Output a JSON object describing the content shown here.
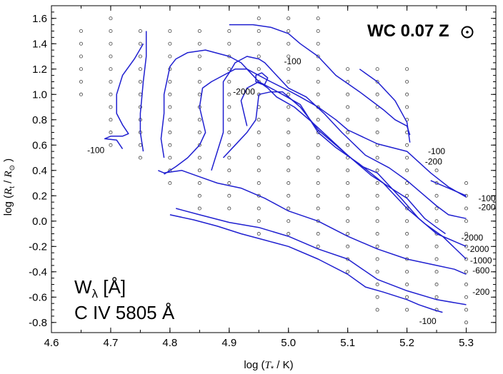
{
  "chart_data": {
    "type": "line",
    "title": "WC 0.07 Z",
    "title_symbol": "⊙",
    "xlabel_prefix": "log (",
    "xlabel_var": "T",
    "xlabel_sub": "*",
    "xlabel_suffix": " / K)",
    "ylabel_prefix": "log (",
    "ylabel_var1": "R",
    "ylabel_sub1": "t",
    "ylabel_mid": " / ",
    "ylabel_var2": "R",
    "ylabel_sub2": "⊙",
    "ylabel_suffix": " )",
    "annotation_line1": "W",
    "annotation_sub": "λ",
    "annotation_unit": " [Å]",
    "annotation_line2": "C IV 5805 Å",
    "xlim": [
      4.6,
      5.35
    ],
    "ylim": [
      -0.88,
      1.7
    ],
    "xticks": [
      4.6,
      4.7,
      4.8,
      4.9,
      5.0,
      5.1,
      5.2,
      5.3
    ],
    "yticks": [
      -0.8,
      -0.6,
      -0.4,
      -0.2,
      0.0,
      0.2,
      0.4,
      0.6,
      0.8,
      1.0,
      1.2,
      1.4,
      1.6
    ],
    "xtick_labels": [
      "4.6",
      "4.7",
      "4.8",
      "4.9",
      "5.0",
      "5.1",
      "5.2",
      "5.3"
    ],
    "ytick_labels": [
      "-0.8",
      "-0.6",
      "-0.4",
      "-0.2",
      "0.0",
      "0.2",
      "0.4",
      "0.6",
      "0.8",
      "1.0",
      "1.2",
      "1.4",
      "1.6"
    ],
    "grid": false,
    "line_color": "#1f1fd0",
    "grid_models": [
      {
        "x": 4.65,
        "ymin": 1.0,
        "ymax": 1.5
      },
      {
        "x": 4.7,
        "ymin": 0.6,
        "ymax": 1.6
      },
      {
        "x": 4.75,
        "ymin": 0.5,
        "ymax": 1.5
      },
      {
        "x": 4.8,
        "ymin": 0.3,
        "ymax": 1.5
      },
      {
        "x": 4.85,
        "ymin": 0.1,
        "ymax": 1.5
      },
      {
        "x": 4.9,
        "ymin": 0.1,
        "ymax": 1.5
      },
      {
        "x": 4.95,
        "ymin": -0.1,
        "ymax": 1.6
      },
      {
        "x": 5.0,
        "ymin": -0.1,
        "ymax": 1.6
      },
      {
        "x": 5.05,
        "ymin": -0.2,
        "ymax": 1.6
      },
      {
        "x": 5.1,
        "ymin": -0.4,
        "ymax": 1.2
      },
      {
        "x": 5.15,
        "ymin": -0.7,
        "ymax": 1.2
      },
      {
        "x": 5.2,
        "ymin": -0.7,
        "ymax": 1.2
      },
      {
        "x": 5.25,
        "ymin": -0.7,
        "ymax": 0.4
      },
      {
        "x": 5.3,
        "ymin": -0.8,
        "ymax": 0.3
      }
    ],
    "contours": [
      {
        "label": "-100",
        "points": [
          [
            4.72,
            0.57
          ],
          [
            4.71,
            0.64
          ],
          [
            4.69,
            0.65
          ],
          [
            4.7,
            0.67
          ],
          [
            4.72,
            0.67
          ],
          [
            4.73,
            0.69
          ],
          [
            4.72,
            0.76
          ],
          [
            4.71,
            0.85
          ],
          [
            4.71,
            1.0
          ],
          [
            4.72,
            1.15
          ],
          [
            4.74,
            1.28
          ],
          [
            4.75,
            1.36
          ],
          [
            4.755,
            1.4
          ]
        ]
      },
      {
        "label": "-100",
        "points": [
          [
            4.755,
            0.55
          ],
          [
            4.75,
            0.7
          ],
          [
            4.75,
            0.85
          ],
          [
            4.752,
            0.95
          ],
          [
            4.755,
            1.1
          ],
          [
            4.76,
            1.3
          ],
          [
            4.76,
            1.5
          ]
        ]
      },
      {
        "label": "-100",
        "points": [
          [
            4.9,
            1.55
          ],
          [
            4.94,
            1.55
          ],
          [
            4.97,
            1.53
          ],
          [
            5.0,
            1.48
          ],
          [
            5.02,
            1.4
          ],
          [
            5.05,
            1.3
          ],
          [
            5.08,
            1.15
          ],
          [
            5.12,
            1.02
          ],
          [
            5.16,
            0.88
          ],
          [
            5.18,
            0.8
          ],
          [
            5.2,
            0.75
          ],
          [
            5.205,
            0.68
          ]
        ]
      },
      {
        "label": "-100",
        "points": [
          [
            5.12,
            1.2
          ],
          [
            5.15,
            1.1
          ],
          [
            5.18,
            0.95
          ],
          [
            5.2,
            0.78
          ],
          [
            5.205,
            0.62
          ]
        ]
      },
      {
        "label": "-200",
        "points": [
          [
            4.79,
            0.5
          ],
          [
            4.785,
            0.65
          ],
          [
            4.79,
            0.85
          ],
          [
            4.79,
            1.0
          ],
          [
            4.8,
            1.22
          ],
          [
            4.81,
            1.28
          ],
          [
            4.83,
            1.33
          ],
          [
            4.86,
            1.35
          ],
          [
            4.9,
            1.3
          ],
          [
            4.92,
            1.25
          ],
          [
            4.93,
            1.2
          ],
          [
            4.97,
            1.1
          ],
          [
            5.0,
            1.03
          ],
          [
            5.02,
            0.98
          ],
          [
            5.05,
            0.9
          ],
          [
            5.08,
            0.8
          ],
          [
            5.1,
            0.72
          ],
          [
            5.15,
            0.61
          ],
          [
            5.2,
            0.55
          ],
          [
            5.24,
            0.38
          ],
          [
            5.27,
            0.27
          ],
          [
            5.3,
            0.19
          ]
        ]
      },
      {
        "label": "-600",
        "points": [
          [
            4.79,
            0.37
          ],
          [
            4.81,
            0.43
          ],
          [
            4.83,
            0.5
          ],
          [
            4.85,
            0.6
          ],
          [
            4.86,
            0.7
          ],
          [
            4.85,
            0.9
          ],
          [
            4.855,
            1.05
          ],
          [
            4.87,
            1.1
          ],
          [
            4.89,
            1.15
          ],
          [
            4.91,
            1.2
          ],
          [
            4.93,
            1.2
          ],
          [
            4.95,
            1.1
          ],
          [
            4.99,
            1.0
          ],
          [
            5.02,
            0.92
          ],
          [
            5.05,
            0.7
          ],
          [
            5.08,
            0.58
          ],
          [
            5.12,
            0.45
          ],
          [
            5.16,
            0.3
          ],
          [
            5.2,
            0.1
          ],
          [
            5.23,
            -0.02
          ],
          [
            5.26,
            -0.12
          ],
          [
            5.3,
            -0.3
          ]
        ]
      },
      {
        "label": "-1000",
        "points": [
          [
            4.89,
            0.5
          ],
          [
            4.91,
            0.6
          ],
          [
            4.93,
            0.7
          ],
          [
            4.945,
            0.8
          ],
          [
            4.95,
            1.0
          ],
          [
            4.97,
            1.02
          ],
          [
            4.99,
            1.02
          ],
          [
            5.02,
            0.9
          ],
          [
            5.05,
            0.72
          ],
          [
            5.08,
            0.6
          ],
          [
            5.12,
            0.44
          ],
          [
            5.15,
            0.38
          ],
          [
            5.19,
            0.18
          ],
          [
            5.22,
            0.02
          ],
          [
            5.25,
            -0.1
          ],
          [
            5.28,
            -0.16
          ],
          [
            5.3,
            -0.2
          ]
        ]
      },
      {
        "label": "-2000",
        "points": [
          [
            4.93,
            0.75
          ],
          [
            4.925,
            0.85
          ],
          [
            4.92,
            0.95
          ],
          [
            4.93,
            1.05
          ],
          [
            4.95,
            1.1
          ],
          [
            4.965,
            1.05
          ],
          [
            4.98,
            0.98
          ],
          [
            5.01,
            0.9
          ],
          [
            5.04,
            0.78
          ],
          [
            5.07,
            0.65
          ],
          [
            5.1,
            0.52
          ],
          [
            5.14,
            0.36
          ],
          [
            5.18,
            0.24
          ],
          [
            5.2,
            0.18
          ],
          [
            5.23,
            0.02
          ],
          [
            5.25,
            -0.05
          ],
          [
            5.265,
            -0.1
          ]
        ]
      },
      {
        "label": "-2000",
        "points": [
          [
            4.955,
            1.08
          ],
          [
            4.945,
            1.1
          ],
          [
            4.945,
            1.15
          ],
          [
            4.955,
            1.17
          ],
          [
            4.965,
            1.13
          ],
          [
            4.96,
            1.08
          ],
          [
            4.955,
            1.08
          ]
        ]
      },
      {
        "label": "-1000",
        "points": [
          [
            4.87,
            0.4
          ],
          [
            4.88,
            0.55
          ],
          [
            4.89,
            0.7
          ],
          [
            4.89,
            0.9
          ],
          [
            4.89,
            1.1
          ],
          [
            4.9,
            1.17
          ],
          [
            4.91,
            1.25
          ],
          [
            4.93,
            1.3
          ],
          [
            4.95,
            1.28
          ],
          [
            4.96,
            1.25
          ],
          [
            4.98,
            1.15
          ],
          [
            5.0,
            1.05
          ],
          [
            5.03,
            0.98
          ],
          [
            5.06,
            0.85
          ],
          [
            5.09,
            0.7
          ],
          [
            5.13,
            0.52
          ],
          [
            5.17,
            0.42
          ],
          [
            5.2,
            0.32
          ],
          [
            5.23,
            0.2
          ],
          [
            5.25,
            0.12
          ],
          [
            5.27,
            0.05
          ],
          [
            5.3,
            0.02
          ]
        ]
      },
      {
        "label": "-600",
        "points": [
          [
            4.78,
            0.4
          ],
          [
            4.79,
            0.38
          ],
          [
            4.82,
            0.4
          ],
          [
            4.85,
            0.35
          ],
          [
            4.88,
            0.3
          ],
          [
            4.92,
            0.26
          ],
          [
            4.96,
            0.18
          ],
          [
            5.0,
            0.08
          ],
          [
            5.05,
            0.0
          ],
          [
            5.1,
            -0.12
          ],
          [
            5.15,
            -0.22
          ],
          [
            5.2,
            -0.3
          ],
          [
            5.25,
            -0.35
          ],
          [
            5.28,
            -0.38
          ],
          [
            5.3,
            -0.42
          ]
        ]
      },
      {
        "label": "-200",
        "points": [
          [
            4.81,
            0.1
          ],
          [
            4.85,
            0.05
          ],
          [
            4.9,
            -0.01
          ],
          [
            4.95,
            -0.05
          ],
          [
            5.0,
            -0.12
          ],
          [
            5.05,
            -0.22
          ],
          [
            5.1,
            -0.3
          ],
          [
            5.125,
            -0.38
          ],
          [
            5.15,
            -0.46
          ],
          [
            5.2,
            -0.55
          ],
          [
            5.25,
            -0.62
          ],
          [
            5.3,
            -0.66
          ]
        ]
      },
      {
        "label": "-100",
        "points": [
          [
            4.8,
            0.05
          ],
          [
            4.84,
            0.01
          ],
          [
            4.88,
            -0.04
          ],
          [
            4.92,
            -0.1
          ],
          [
            4.96,
            -0.15
          ],
          [
            5.0,
            -0.2
          ],
          [
            5.05,
            -0.3
          ],
          [
            5.1,
            -0.42
          ],
          [
            5.13,
            -0.52
          ],
          [
            5.16,
            -0.56
          ],
          [
            5.2,
            -0.62
          ],
          [
            5.22,
            -0.66
          ],
          [
            5.245,
            -0.7
          ],
          [
            5.26,
            -0.72
          ]
        ]
      },
      {
        "label": "-100",
        "points": [
          [
            5.24,
            0.32
          ],
          [
            5.26,
            0.28
          ],
          [
            5.29,
            0.22
          ],
          [
            5.3,
            0.2
          ]
        ]
      }
    ],
    "contour_labels": [
      {
        "text": "-100",
        "x": 4.675,
        "y": 0.56
      },
      {
        "text": "-100",
        "x": 5.007,
        "y": 1.26
      },
      {
        "text": "-2000",
        "x": 4.925,
        "y": 1.02
      },
      {
        "text": "-100",
        "x": 5.25,
        "y": 0.55
      },
      {
        "text": "-200",
        "x": 5.245,
        "y": 0.47
      },
      {
        "text": "-100",
        "x": 5.335,
        "y": 0.18
      },
      {
        "text": "-200",
        "x": 5.335,
        "y": 0.11
      },
      {
        "text": "-2000",
        "x": 5.31,
        "y": -0.13
      },
      {
        "text": "-2000",
        "x": 5.32,
        "y": -0.22
      },
      {
        "text": "-1000",
        "x": 5.325,
        "y": -0.31
      },
      {
        "text": "-600",
        "x": 5.325,
        "y": -0.39
      },
      {
        "text": "-200",
        "x": 5.325,
        "y": -0.56
      },
      {
        "text": "-100",
        "x": 5.235,
        "y": -0.79
      }
    ]
  }
}
